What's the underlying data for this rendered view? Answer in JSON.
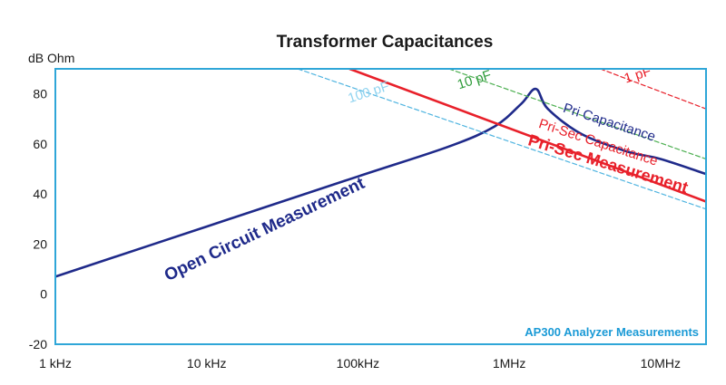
{
  "chart_data": {
    "type": "line",
    "title": "Transformer Capacitances",
    "ylabel": "dB Ohm",
    "xlabel": "",
    "x_scale": "log",
    "xlim": [
      1000,
      20000000
    ],
    "ylim": [
      -20,
      90
    ],
    "x_ticks": [
      1000,
      10000,
      100000,
      1000000,
      10000000
    ],
    "x_tick_labels": [
      "1 kHz",
      "10 kHz",
      "100kHz",
      "1MHz",
      "10MHz"
    ],
    "y_ticks": [
      -20,
      0,
      20,
      40,
      60,
      80
    ],
    "y_tick_labels": [
      "-20",
      "0",
      "20",
      "40",
      "60",
      "80"
    ],
    "grid": false,
    "watermark": "AP300 Analyzer Measurements",
    "series": [
      {
        "name": "Open Circuit Measurement",
        "color": "#1f2a8a",
        "style": "solid-thick",
        "x": [
          1000,
          10000,
          100000,
          400000,
          800000,
          1200000,
          1500000,
          1800000,
          3000000,
          6000000,
          10000000,
          20000000
        ],
        "y": [
          7,
          27,
          47,
          59,
          67,
          76,
          82,
          74,
          64,
          57,
          54,
          48
        ]
      },
      {
        "name": "Pri-Sec Measurement",
        "color": "#e8202a",
        "style": "solid-thick",
        "x": [
          88000,
          20000000
        ],
        "y": [
          90,
          37
        ]
      },
      {
        "name": "1 pF",
        "color": "#e8202a",
        "style": "dashed",
        "x": [
          4000000,
          20000000
        ],
        "y": [
          90,
          74
        ]
      },
      {
        "name": "10 pF",
        "color": "#4caf50",
        "style": "dashed",
        "x": [
          400000,
          20000000
        ],
        "y": [
          90,
          54
        ]
      },
      {
        "name": "100 pF",
        "color": "#4fb4e0",
        "style": "dashed",
        "x": [
          40000,
          20000000
        ],
        "y": [
          90,
          34
        ]
      }
    ],
    "annotations": [
      {
        "text": "Open Circuit Measurement",
        "color": "#1f2a8a",
        "bold": true,
        "size": 19,
        "angle": -25.5,
        "x": 25000,
        "y": 24
      },
      {
        "text": "Pri Capacitance",
        "color": "#1f2a8a",
        "bold": false,
        "size": 15,
        "angle": 18,
        "x": 4500000,
        "y": 67
      },
      {
        "text": "Pri-Sec Capacitance",
        "color": "#e8202a",
        "bold": false,
        "size": 15,
        "angle": 18,
        "x": 3800000,
        "y": 59
      },
      {
        "text": "Pri-Sec Measurement",
        "color": "#e8202a",
        "bold": true,
        "size": 18,
        "angle": 17,
        "x": 4400000,
        "y": 50
      },
      {
        "text": "1 pF",
        "color": "#e8202a",
        "bold": false,
        "size": 15,
        "angle": -18,
        "x": 7200000,
        "y": 86
      },
      {
        "text": "10 pF",
        "color": "#2e9b3a",
        "bold": false,
        "size": 15,
        "angle": -18,
        "x": 600000,
        "y": 84
      },
      {
        "text": "100 pF",
        "color": "#8fd3f0",
        "bold": false,
        "size": 15,
        "angle": -18,
        "x": 120000,
        "y": 79
      }
    ]
  }
}
